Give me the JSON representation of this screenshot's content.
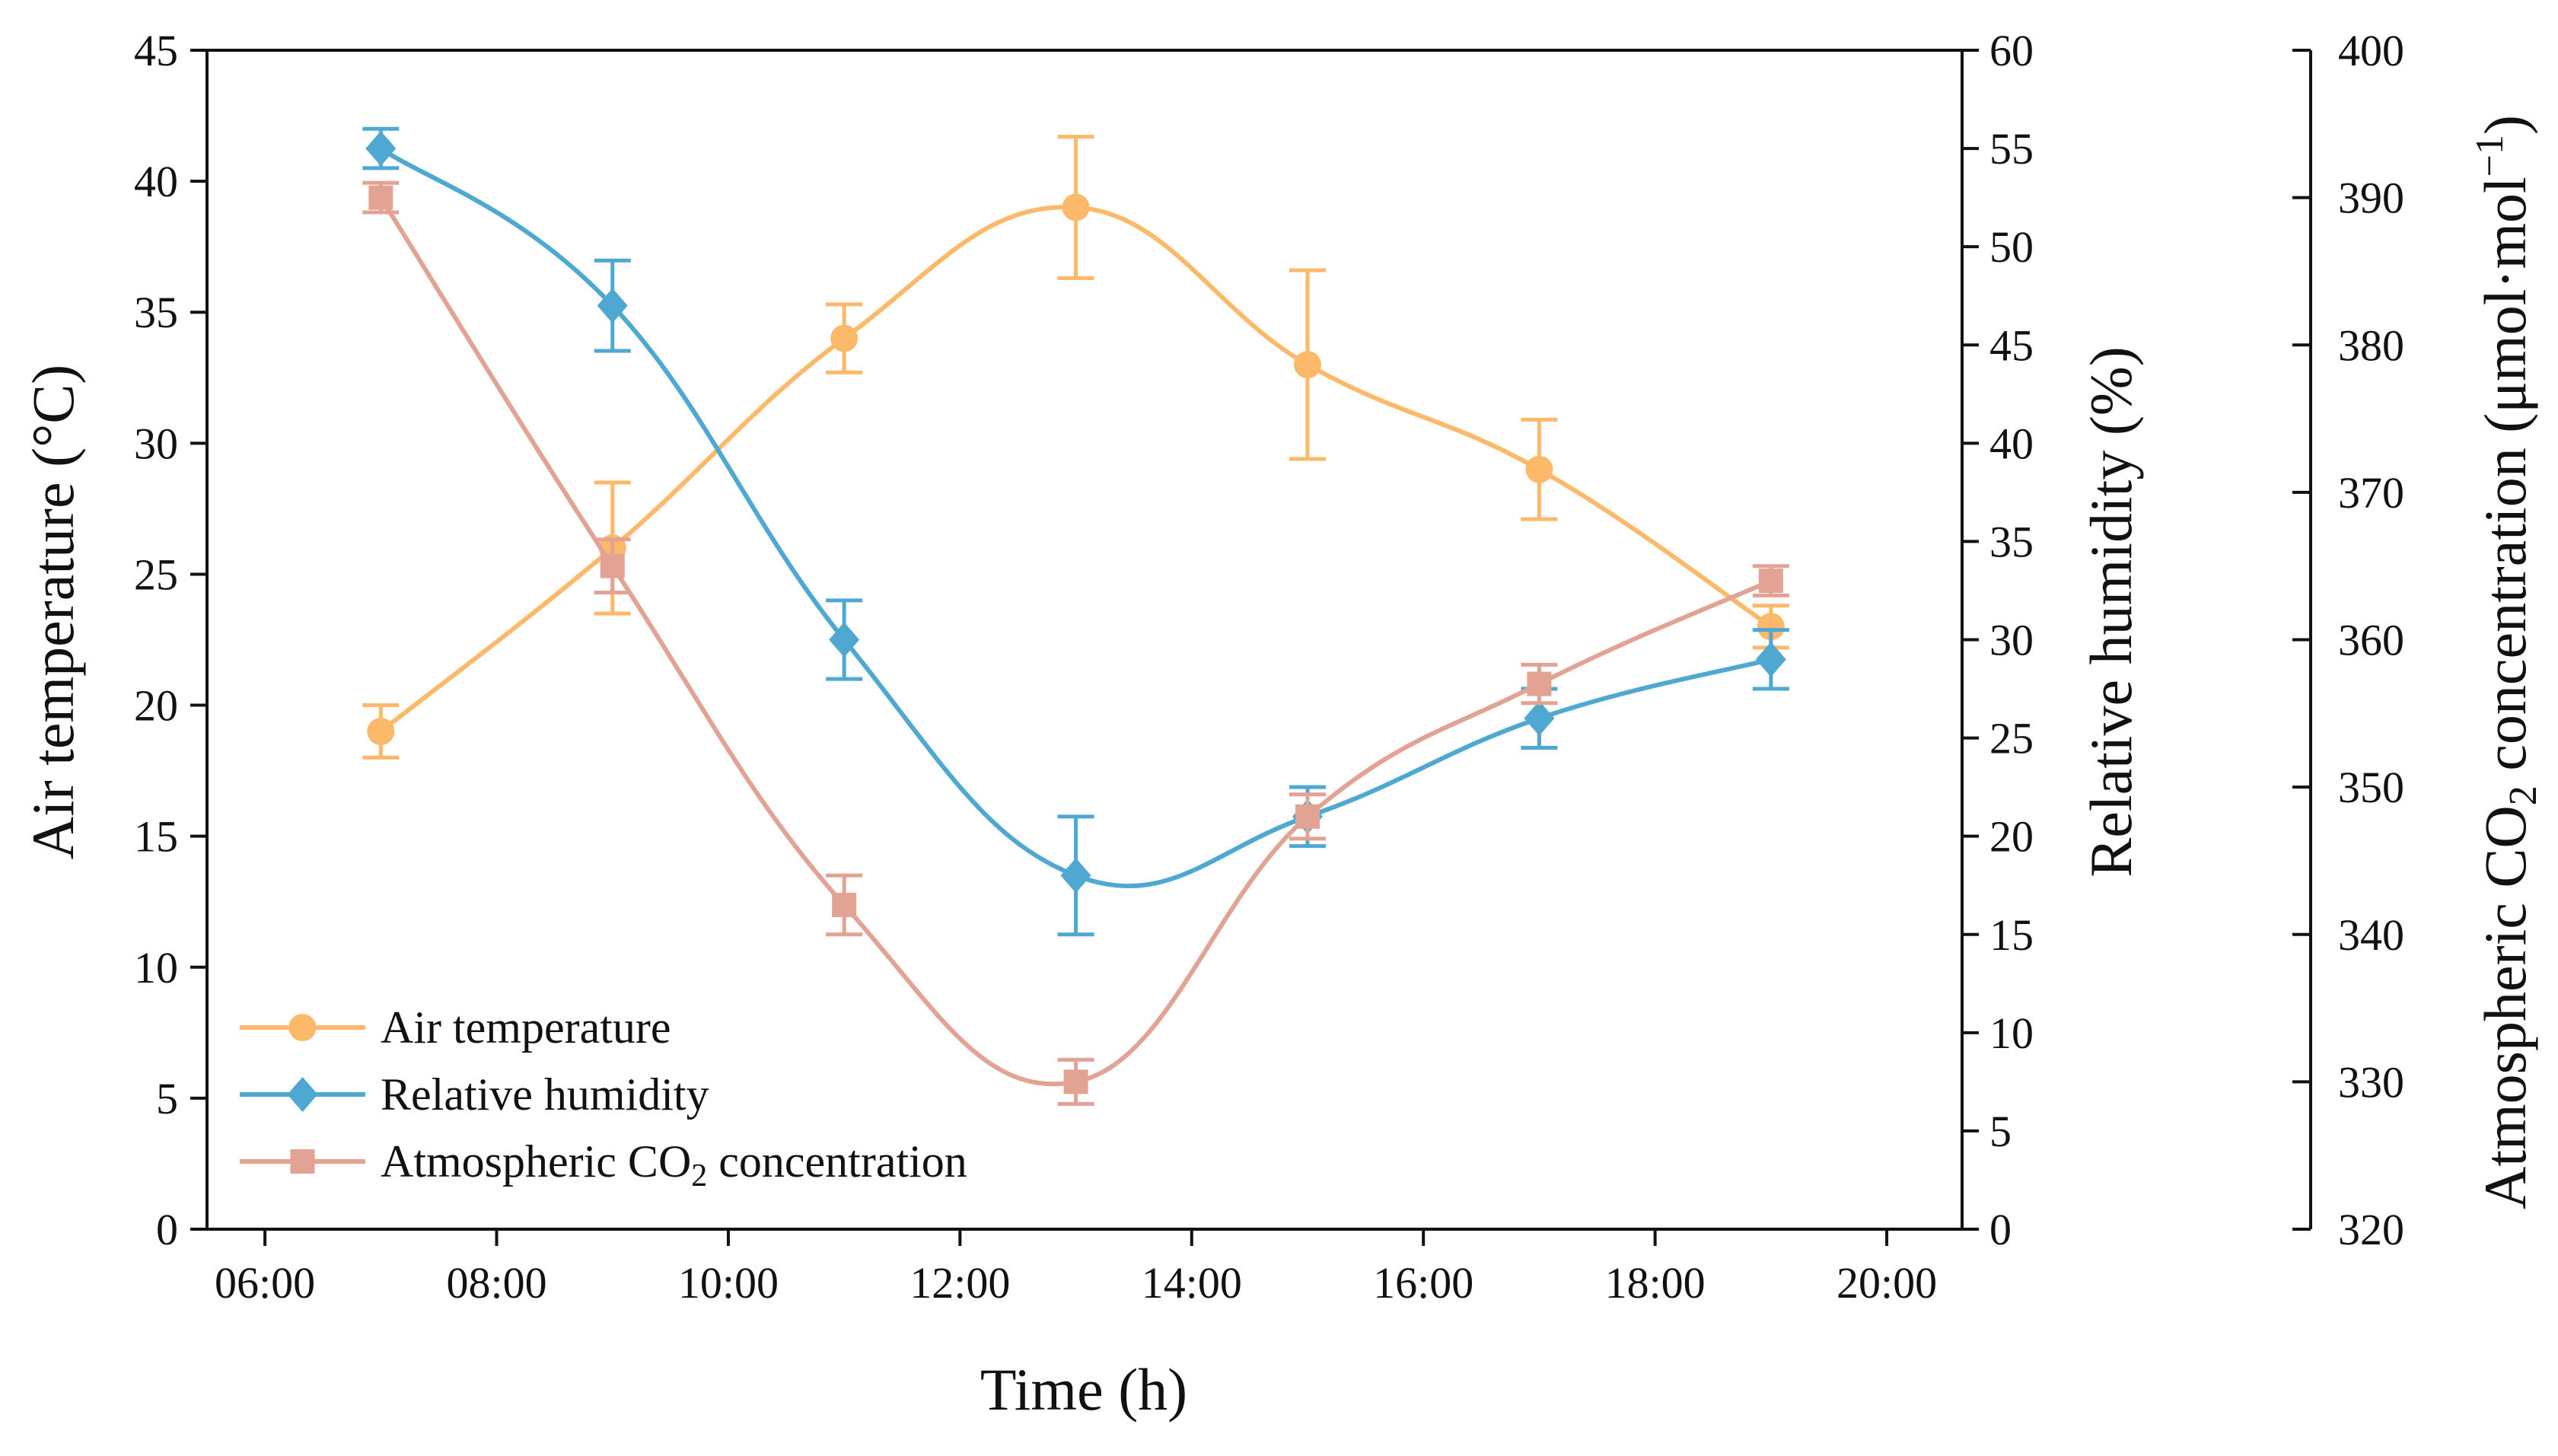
{
  "chart_data": {
    "type": "line",
    "x": [
      "07:00",
      "09:00",
      "11:00",
      "13:00",
      "15:00",
      "17:00",
      "19:00"
    ],
    "x_hours": [
      7,
      9,
      11,
      13,
      15,
      17,
      19
    ],
    "xlim": [
      5.5,
      20.65
    ],
    "xticks": [
      6,
      8,
      10,
      12,
      14,
      16,
      18,
      20
    ],
    "xtick_labels": [
      "06:00",
      "08:00",
      "10:00",
      "12:00",
      "14:00",
      "16:00",
      "18:00",
      "20:00"
    ],
    "xlabel": "Time (h)",
    "axes": {
      "left": {
        "label": "Air temperature (°C)",
        "ylim": [
          0,
          45
        ],
        "ticks": [
          0,
          5,
          10,
          15,
          20,
          25,
          30,
          35,
          40,
          45
        ],
        "tick_labels": [
          "0",
          "5",
          "10",
          "15",
          "20",
          "25",
          "30",
          "35",
          "40",
          "45"
        ]
      },
      "right": {
        "label": "Relative humidity (%)",
        "ylim": [
          0,
          60
        ],
        "ticks": [
          0,
          5,
          10,
          15,
          20,
          25,
          30,
          35,
          40,
          45,
          50,
          55,
          60
        ],
        "tick_labels": [
          "0",
          "5",
          "10",
          "15",
          "20",
          "25",
          "30",
          "35",
          "40",
          "45",
          "50",
          "55",
          "60"
        ]
      },
      "far_right": {
        "label_main": "Atmospheric CO",
        "label_sub": "2",
        "label_rest": " concentration (μmol·mol",
        "label_sup": "−1",
        "label_end": ")",
        "ylim": [
          320,
          400
        ],
        "ticks": [
          320,
          330,
          340,
          350,
          360,
          370,
          380,
          390,
          400
        ],
        "tick_labels": [
          "320",
          "330",
          "340",
          "350",
          "360",
          "370",
          "380",
          "390",
          "400"
        ]
      }
    },
    "series": [
      {
        "name": "Air temperature",
        "axis": "left",
        "color": "#FDB96A",
        "marker": "circle",
        "smooth": true,
        "values": [
          19.0,
          26.0,
          34.0,
          39.0,
          33.0,
          29.0,
          23.0
        ],
        "errors": [
          1.0,
          2.5,
          1.3,
          2.7,
          3.6,
          1.9,
          0.8
        ]
      },
      {
        "name": "Relative humidity",
        "axis": "right",
        "color": "#4FA8D2",
        "marker": "diamond",
        "smooth": true,
        "values": [
          55.0,
          47.0,
          30.0,
          18.0,
          21.0,
          26.0,
          29.0
        ],
        "errors": [
          1.0,
          2.3,
          2.0,
          3.0,
          1.5,
          1.5,
          1.5
        ]
      },
      {
        "name": "Atmospheric CO2 concentration",
        "axis": "far_right",
        "color": "#E3A394",
        "marker": "square",
        "smooth": true,
        "values": [
          390.0,
          365.0,
          342.0,
          330.0,
          348.0,
          357.0,
          364.0
        ],
        "errors": [
          1.0,
          1.8,
          2.0,
          1.5,
          1.5,
          1.3,
          1.0
        ]
      }
    ],
    "legend": {
      "position": "bottom-left",
      "entries": [
        {
          "label": "Air temperature"
        },
        {
          "label": "Relative humidity"
        },
        {
          "label_main": "Atmospheric CO",
          "label_sub": "2",
          "label_rest": " concentration"
        }
      ]
    }
  }
}
